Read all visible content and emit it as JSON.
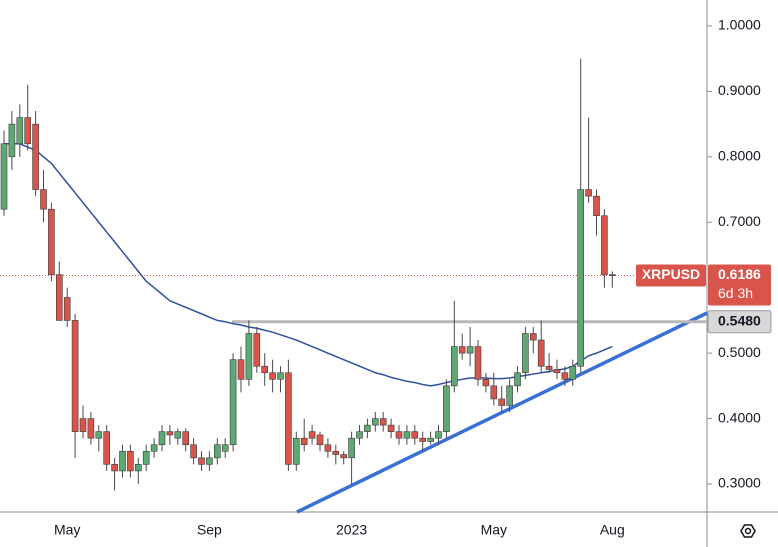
{
  "chart_data": {
    "type": "candlestick",
    "symbol": "XRPUSD",
    "categories": [
      null,
      null,
      null,
      null,
      null,
      null,
      null,
      null,
      "May",
      null,
      null,
      null,
      null,
      null,
      null,
      null,
      null,
      null,
      null,
      null,
      null,
      null,
      null,
      null,
      null,
      null,
      "Sep",
      null,
      null,
      null,
      null,
      null,
      null,
      null,
      null,
      null,
      null,
      null,
      null,
      null,
      null,
      null,
      null,
      null,
      "2023",
      null,
      null,
      null,
      null,
      null,
      null,
      null,
      null,
      null,
      null,
      null,
      null,
      null,
      null,
      null,
      null,
      null,
      "May",
      null,
      null,
      null,
      null,
      null,
      null,
      null,
      null,
      null,
      null,
      null,
      null,
      null,
      null,
      "Aug"
    ],
    "open": [
      0.72,
      0.8,
      0.82,
      0.86,
      0.85,
      0.75,
      0.72,
      0.62,
      0.585,
      0.55,
      0.4,
      0.4,
      0.37,
      0.38,
      0.33,
      0.32,
      0.35,
      0.32,
      0.33,
      0.35,
      0.36,
      0.38,
      0.37,
      0.38,
      0.36,
      0.34,
      0.33,
      0.34,
      0.35,
      0.36,
      0.49,
      0.46,
      0.53,
      0.48,
      0.47,
      0.46,
      0.47,
      0.33,
      0.37,
      0.38,
      0.375,
      0.36,
      0.35,
      0.345,
      0.34,
      0.37,
      0.38,
      0.39,
      0.4,
      0.39,
      0.38,
      0.37,
      0.38,
      0.37,
      0.365,
      0.37,
      0.38,
      0.45,
      0.51,
      0.5,
      0.51,
      0.46,
      0.45,
      0.43,
      0.42,
      0.45,
      0.47,
      0.53,
      0.52,
      0.48,
      0.475,
      0.47,
      0.46,
      0.48,
      0.75,
      0.74,
      0.71,
      0.62
    ],
    "high": [
      0.84,
      0.87,
      0.88,
      0.91,
      0.87,
      0.78,
      0.73,
      0.64,
      0.6,
      0.56,
      0.42,
      0.41,
      0.39,
      0.39,
      0.34,
      0.36,
      0.36,
      0.34,
      0.36,
      0.37,
      0.39,
      0.39,
      0.385,
      0.385,
      0.37,
      0.35,
      0.35,
      0.37,
      0.37,
      0.5,
      0.51,
      0.55,
      0.54,
      0.5,
      0.49,
      0.48,
      0.49,
      0.38,
      0.4,
      0.39,
      0.38,
      0.37,
      0.36,
      0.35,
      0.38,
      0.39,
      0.4,
      0.41,
      0.41,
      0.4,
      0.39,
      0.39,
      0.39,
      0.38,
      0.38,
      0.39,
      0.46,
      0.58,
      0.53,
      0.54,
      0.52,
      0.47,
      0.47,
      0.45,
      0.46,
      0.48,
      0.54,
      0.54,
      0.55,
      0.5,
      0.49,
      0.48,
      0.49,
      0.95,
      0.86,
      0.75,
      0.72,
      0.625
    ],
    "low": [
      0.71,
      0.78,
      0.8,
      0.81,
      0.74,
      0.7,
      0.61,
      0.55,
      0.54,
      0.34,
      0.37,
      0.36,
      0.35,
      0.32,
      0.29,
      0.31,
      0.31,
      0.3,
      0.32,
      0.34,
      0.35,
      0.36,
      0.36,
      0.35,
      0.33,
      0.32,
      0.32,
      0.33,
      0.34,
      0.35,
      0.44,
      0.45,
      0.47,
      0.45,
      0.44,
      0.44,
      0.32,
      0.32,
      0.35,
      0.36,
      0.35,
      0.34,
      0.33,
      0.33,
      0.3,
      0.36,
      0.37,
      0.38,
      0.38,
      0.37,
      0.36,
      0.36,
      0.36,
      0.35,
      0.36,
      0.36,
      0.37,
      0.44,
      0.49,
      0.48,
      0.45,
      0.44,
      0.42,
      0.41,
      0.41,
      0.44,
      0.46,
      0.5,
      0.47,
      0.47,
      0.46,
      0.45,
      0.45,
      0.47,
      0.73,
      0.68,
      0.6,
      0.6
    ],
    "close": [
      0.82,
      0.85,
      0.86,
      0.82,
      0.75,
      0.72,
      0.62,
      0.55,
      0.55,
      0.38,
      0.38,
      0.37,
      0.38,
      0.33,
      0.32,
      0.35,
      0.32,
      0.33,
      0.35,
      0.36,
      0.38,
      0.375,
      0.38,
      0.36,
      0.34,
      0.33,
      0.34,
      0.36,
      0.36,
      0.49,
      0.46,
      0.53,
      0.48,
      0.47,
      0.46,
      0.47,
      0.33,
      0.37,
      0.36,
      0.37,
      0.36,
      0.35,
      0.345,
      0.34,
      0.37,
      0.38,
      0.39,
      0.4,
      0.39,
      0.38,
      0.37,
      0.38,
      0.37,
      0.365,
      0.37,
      0.38,
      0.45,
      0.51,
      0.5,
      0.51,
      0.46,
      0.45,
      0.43,
      0.42,
      0.45,
      0.47,
      0.53,
      0.52,
      0.48,
      0.475,
      0.47,
      0.46,
      0.48,
      0.75,
      0.74,
      0.71,
      0.62,
      0.6186
    ],
    "up_color": "#5fa874",
    "down_color": "#d9544a",
    "ma": {
      "color": "#2f4f9e",
      "values": [
        0.82,
        0.82,
        0.82,
        0.815,
        0.81,
        0.8,
        0.79,
        0.775,
        0.76,
        0.745,
        0.73,
        0.715,
        0.7,
        0.685,
        0.67,
        0.655,
        0.64,
        0.625,
        0.61,
        0.6,
        0.59,
        0.58,
        0.575,
        0.57,
        0.565,
        0.56,
        0.555,
        0.55,
        0.548,
        0.545,
        0.543,
        0.54,
        0.538,
        0.535,
        0.532,
        0.528,
        0.524,
        0.52,
        0.515,
        0.51,
        0.505,
        0.5,
        0.495,
        0.49,
        0.485,
        0.48,
        0.475,
        0.47,
        0.467,
        0.463,
        0.46,
        0.457,
        0.455,
        0.452,
        0.45,
        0.452,
        0.455,
        0.458,
        0.46,
        0.462,
        0.462,
        0.462,
        0.461,
        0.461,
        0.462,
        0.464,
        0.466,
        0.468,
        0.47,
        0.472,
        0.474,
        0.476,
        0.48,
        0.488,
        0.496,
        0.5,
        0.505,
        0.51
      ]
    },
    "ylim": [
      0.2572,
      1.0397
    ],
    "yticks": [
      {
        "value": 0.3,
        "label": "0.3000"
      },
      {
        "value": 0.4,
        "label": "0.4000"
      },
      {
        "value": 0.5,
        "label": "0.5000"
      },
      {
        "value": 0.7,
        "label": "0.7000"
      },
      {
        "value": 0.8,
        "label": "0.8000"
      },
      {
        "value": 0.9,
        "label": "0.9000"
      },
      {
        "value": 1,
        "label": "1.0000"
      }
    ],
    "support": {
      "value": 0.548,
      "label": "0.5480"
    },
    "last_price": 0.6186,
    "countdown": "6d 3h"
  }
}
